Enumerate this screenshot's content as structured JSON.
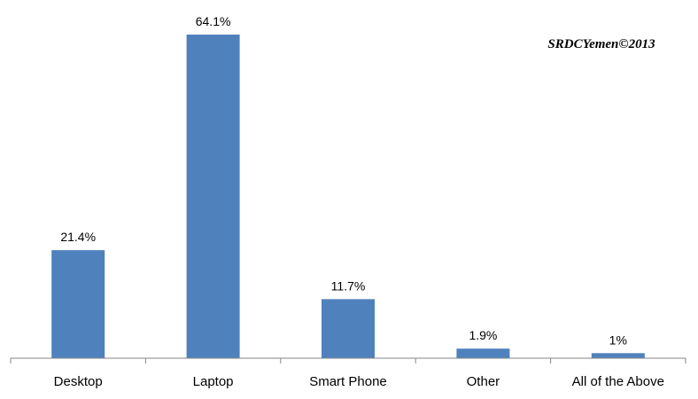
{
  "chart_data": {
    "type": "bar",
    "categories": [
      "Desktop",
      "Laptop",
      "Smart Phone",
      "Other",
      "All of the Above"
    ],
    "values": [
      21.4,
      64.1,
      11.7,
      1.9,
      1
    ],
    "data_labels": [
      "21.4%",
      "64.1%",
      "11.7%",
      "1.9%",
      "1%"
    ],
    "title": "",
    "xlabel": "",
    "ylabel": "",
    "ylim": [
      0,
      70
    ],
    "grid": false,
    "legend": "none",
    "bar_color": "#4F81BD",
    "annotation": "SRDCYemen©2013"
  }
}
